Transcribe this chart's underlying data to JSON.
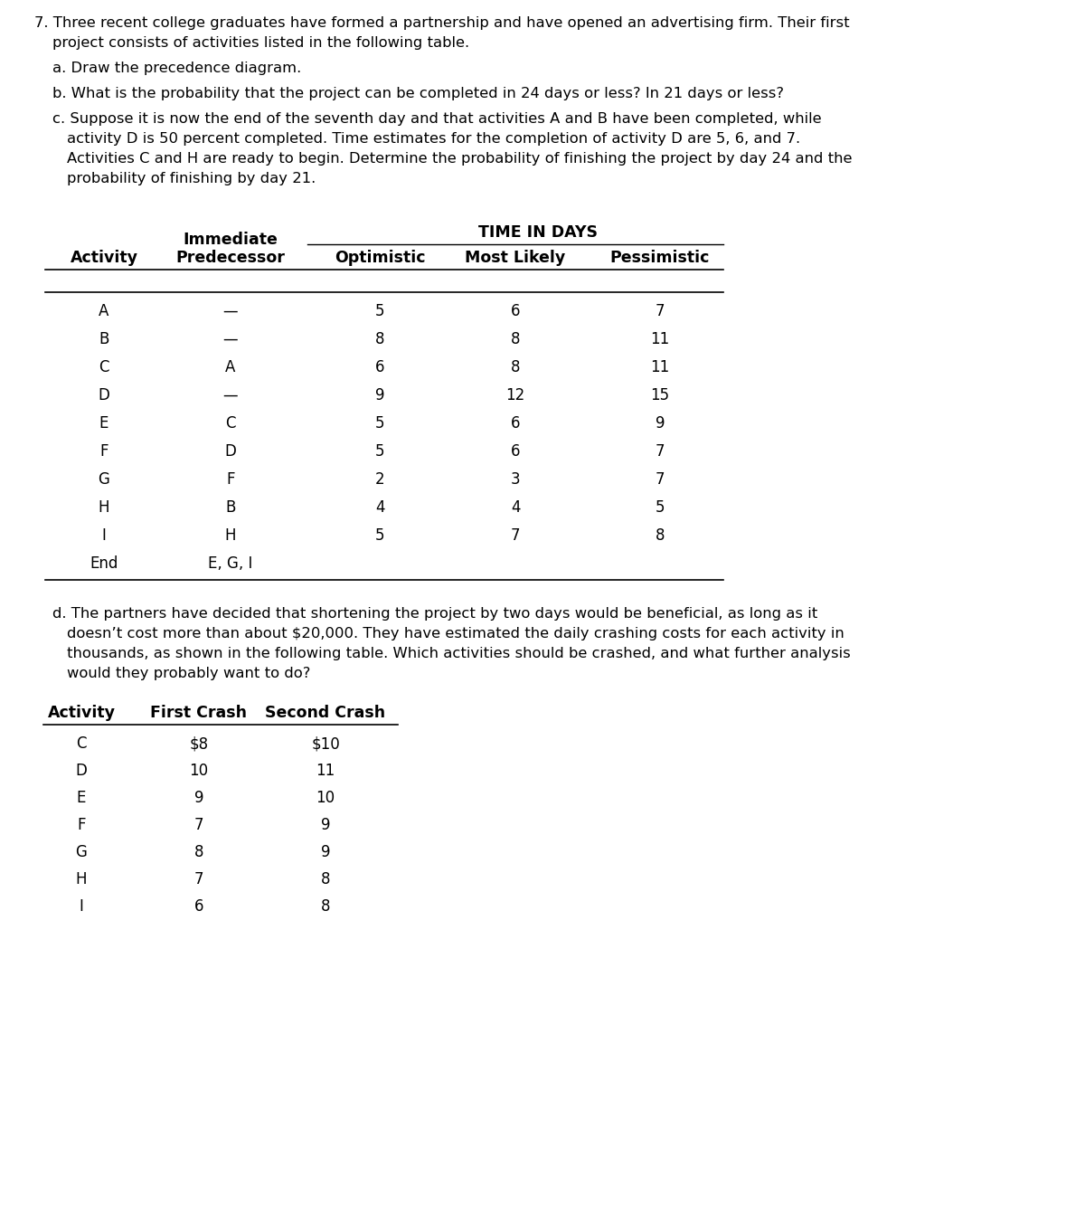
{
  "bg_color": "#ffffff",
  "text_color": "#000000",
  "fs_body": 11.8,
  "fs_bold": 12.5,
  "fs_data": 12.0,
  "intro_line1": "7. Three recent college graduates have formed a partnership and have opened an advertising firm. Their first",
  "intro_line2": "project consists of activities listed in the following table.",
  "part_a": "a. Draw the precedence diagram.",
  "part_b": "b. What is the probability that the project can be completed in 24 days or less? In 21 days or less?",
  "part_c1": "c. Suppose it is now the end of the seventh day and that activities A and B have been completed, while",
  "part_c2": "activity D is 50 percent completed. Time estimates for the completion of activity D are 5, 6, and 7.",
  "part_c3": "Activities C and H are ready to begin. Determine the probability of finishing the project by day 24 and the",
  "part_c4": "probability of finishing by day 21.",
  "time_in_days": "TIME IN DAYS",
  "immediate": "Immediate",
  "col_headers": [
    "Activity",
    "Predecessor",
    "Optimistic",
    "Most Likely",
    "Pessimistic"
  ],
  "table1_rows": [
    [
      "A",
      "—",
      "5",
      "6",
      "7"
    ],
    [
      "B",
      "—",
      "8",
      "8",
      "11"
    ],
    [
      "C",
      "A",
      "6",
      "8",
      "11"
    ],
    [
      "D",
      "—",
      "9",
      "12",
      "15"
    ],
    [
      "E",
      "C",
      "5",
      "6",
      "9"
    ],
    [
      "F",
      "D",
      "5",
      "6",
      "7"
    ],
    [
      "G",
      "F",
      "2",
      "3",
      "7"
    ],
    [
      "H",
      "B",
      "4",
      "4",
      "5"
    ],
    [
      "I",
      "H",
      "5",
      "7",
      "8"
    ],
    [
      "End",
      "E, G, I",
      "",
      "",
      ""
    ]
  ],
  "part_d1": "d. The partners have decided that shortening the project by two days would be beneficial, as long as it",
  "part_d2": "doesn’t cost more than about $20,000. They have estimated the daily crashing costs for each activity in",
  "part_d3": "thousands, as shown in the following table. Which activities should be crashed, and what further analysis",
  "part_d4": "would they probably want to do?",
  "t2_headers": [
    "Activity",
    "First Crash",
    "Second Crash"
  ],
  "table2_rows": [
    [
      "C",
      "$8",
      "$10"
    ],
    [
      "D",
      "10",
      "11"
    ],
    [
      "E",
      "9",
      "10"
    ],
    [
      "F",
      "7",
      "9"
    ],
    [
      "G",
      "8",
      "9"
    ],
    [
      "H",
      "7",
      "8"
    ],
    [
      "I",
      "6",
      "8"
    ]
  ]
}
